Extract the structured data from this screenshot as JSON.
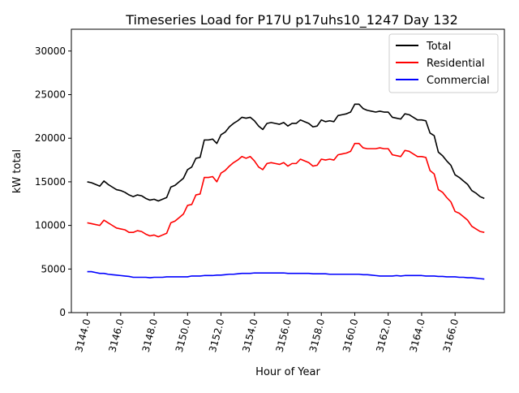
{
  "chart_data": {
    "type": "line",
    "title": "Timeseries Load for P17U p17uhs10_1247  Day 132",
    "xlabel": "Hour of Year",
    "ylabel": "kW total",
    "xlim": [
      3143.05,
      3168.95
    ],
    "ylim": [
      0,
      32500
    ],
    "x_start": 3144.0,
    "x_step": 0.25,
    "xticks": [
      3144,
      3146,
      3148,
      3150,
      3152,
      3154,
      3156,
      3158,
      3160,
      3162,
      3164,
      3166
    ],
    "xtick_labels": [
      "3144.0",
      "3146.0",
      "3148.0",
      "3150.0",
      "3152.0",
      "3154.0",
      "3156.0",
      "3158.0",
      "3160.0",
      "3162.0",
      "3164.0",
      "3166.0"
    ],
    "yticks": [
      0,
      5000,
      10000,
      15000,
      20000,
      25000,
      30000
    ],
    "ytick_labels": [
      "0",
      "5000",
      "10000",
      "15000",
      "20000",
      "25000",
      "30000"
    ],
    "legend_position": "top-right",
    "series": [
      {
        "name": "Total",
        "color": "#000000",
        "values": [
          15000,
          14900,
          14700,
          14500,
          15100,
          14700,
          14400,
          14100,
          14000,
          13800,
          13500,
          13300,
          13500,
          13400,
          13100,
          12900,
          13000,
          12800,
          13000,
          13200,
          14400,
          14600,
          15000,
          15400,
          16400,
          16700,
          17700,
          17800,
          19800,
          19800,
          19900,
          19400,
          20400,
          20700,
          21300,
          21700,
          22000,
          22400,
          22300,
          22400,
          22000,
          21400,
          21000,
          21700,
          21800,
          21700,
          21600,
          21800,
          21400,
          21700,
          21700,
          22100,
          21900,
          21700,
          21300,
          21400,
          22100,
          21900,
          22000,
          21900,
          22600,
          22700,
          22800,
          23000,
          23900,
          23900,
          23400,
          23200,
          23100,
          23000,
          23100,
          23000,
          23000,
          22400,
          22300,
          22200,
          22800,
          22700,
          22400,
          22100,
          22100,
          22000,
          20600,
          20300,
          18400,
          18000,
          17400,
          16900,
          15800,
          15500,
          15100,
          14700,
          14000,
          13700,
          13300,
          13100
        ]
      },
      {
        "name": "Residential",
        "color": "#ff0000",
        "values": [
          10300,
          10200,
          10100,
          10000,
          10600,
          10300,
          10000,
          9700,
          9600,
          9500,
          9200,
          9200,
          9400,
          9300,
          9000,
          8800,
          8900,
          8700,
          8900,
          9100,
          10300,
          10500,
          10900,
          11300,
          12300,
          12400,
          13500,
          13600,
          15500,
          15500,
          15600,
          15000,
          16000,
          16300,
          16800,
          17200,
          17500,
          17900,
          17700,
          17900,
          17400,
          16700,
          16400,
          17100,
          17200,
          17100,
          17000,
          17200,
          16800,
          17100,
          17100,
          17600,
          17400,
          17200,
          16800,
          16900,
          17600,
          17500,
          17600,
          17500,
          18100,
          18200,
          18300,
          18500,
          19400,
          19400,
          18900,
          18800,
          18800,
          18800,
          18900,
          18800,
          18800,
          18100,
          18000,
          17900,
          18600,
          18500,
          18200,
          17900,
          17900,
          17800,
          16300,
          15900,
          14100,
          13800,
          13200,
          12700,
          11600,
          11400,
          11000,
          10600,
          9900,
          9600,
          9300,
          9200
        ]
      },
      {
        "name": "Commercial",
        "color": "#0000ff",
        "values": [
          4700,
          4700,
          4600,
          4500,
          4500,
          4400,
          4350,
          4300,
          4250,
          4200,
          4150,
          4050,
          4050,
          4050,
          4050,
          4000,
          4050,
          4050,
          4050,
          4100,
          4100,
          4100,
          4100,
          4100,
          4100,
          4200,
          4200,
          4200,
          4250,
          4250,
          4250,
          4300,
          4300,
          4350,
          4400,
          4400,
          4450,
          4500,
          4500,
          4500,
          4550,
          4550,
          4550,
          4550,
          4550,
          4550,
          4550,
          4550,
          4500,
          4500,
          4500,
          4500,
          4500,
          4500,
          4450,
          4450,
          4450,
          4450,
          4400,
          4400,
          4400,
          4400,
          4400,
          4400,
          4400,
          4400,
          4350,
          4350,
          4300,
          4250,
          4200,
          4200,
          4200,
          4200,
          4250,
          4200,
          4250,
          4250,
          4250,
          4250,
          4250,
          4200,
          4200,
          4200,
          4150,
          4150,
          4100,
          4100,
          4100,
          4050,
          4050,
          4000,
          4000,
          3950,
          3900,
          3850
        ]
      }
    ]
  }
}
